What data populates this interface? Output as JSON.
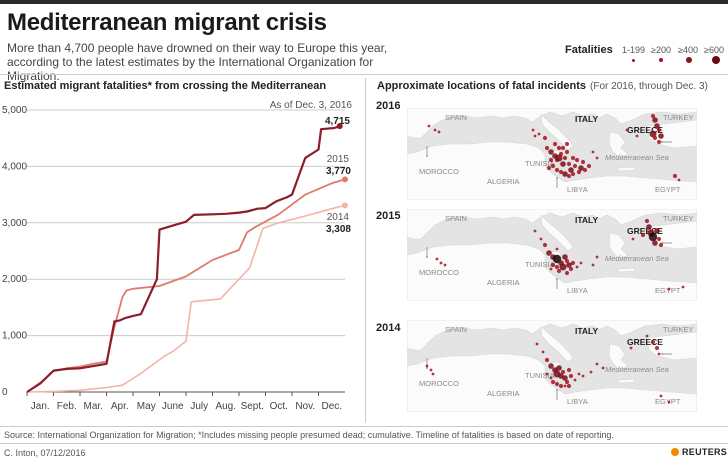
{
  "title": "Mediterranean migrant crisis",
  "subtitle": "More than 4,700 people have drowned on their way to Europe this year, according to the latest estimates by the International Organization for Migration.",
  "legend": {
    "title": "Fatalities",
    "categories": [
      "1-199",
      "≥200",
      "≥400",
      "≥600"
    ]
  },
  "left_header": "Estimated migrant fatalities* from crossing the Mediterranean",
  "right_header": "Approximate locations of fatal incidents",
  "right_note": "(For 2016, through Dec. 3)",
  "maps": [
    {
      "year": "2016",
      "labels": {
        "spain": "SPAIN",
        "italy": "ITALY",
        "greece": "GREECE",
        "turkey": "TURKEY",
        "tunisia": "TUNISIA",
        "morocco": "MOROCCO",
        "algeria": "ALGERIA",
        "libya": "LIBYA",
        "egypt": "EGYPT",
        "sea": "Mediterranean Sea"
      }
    },
    {
      "year": "2015",
      "labels": {
        "spain": "SPAIN",
        "italy": "ITALY",
        "greece": "GREECE",
        "turkey": "TURKEY",
        "tunisia": "TUNISIA",
        "morocco": "MOROCCO",
        "algeria": "ALGERIA",
        "libya": "LIBYA",
        "egypt": "EGYPT",
        "sea": "Mediterranean Sea"
      }
    },
    {
      "year": "2014",
      "labels": {
        "spain": "SPAIN",
        "italy": "ITALY",
        "greece": "GREECE",
        "turkey": "TURKEY",
        "tunisia": "TUNISIA",
        "morocco": "MOROCCO",
        "algeria": "ALGERIA",
        "libya": "LIBYA",
        "egypt": "EGYPT",
        "sea": "Mediterranean Sea"
      }
    }
  ],
  "source": "Source: International Organization for Migration; *Includes missing people presumed dead; cumulative. Timeline of fatalities is based on date of reporting.",
  "credit": "C. Inton, 07/12/2016",
  "brand": "REUTERS",
  "colors": {
    "s2016": "#8c1d2b",
    "s2015": "#e07b6c",
    "s2014": "#f2b4a6",
    "dot": "#a3131f"
  },
  "chart_data": {
    "type": "line",
    "ylim": [
      0,
      5000
    ],
    "yticks": [
      0,
      1000,
      2000,
      3000,
      4000,
      5000
    ],
    "ytick_labels": [
      "0",
      "1,000",
      "2,000",
      "3,000",
      "4,000",
      "5,000"
    ],
    "xlim": [
      0,
      12
    ],
    "xticks": [
      0.5,
      1.5,
      2.5,
      3.5,
      4.5,
      5.5,
      6.5,
      7.5,
      8.5,
      9.5,
      10.5,
      11.5
    ],
    "xtick_labels": [
      "Jan.",
      "Feb.",
      "Mar.",
      "Apr.",
      "May",
      "June",
      "July",
      "Aug.",
      "Sept.",
      "Oct.",
      "Nov.",
      "Dec."
    ],
    "series": [
      {
        "name": "2014",
        "end_label": "3,308",
        "x": [
          0,
          1,
          2,
          3,
          3.6,
          4.3,
          5.2,
          5.5,
          6.0,
          6.2,
          7.3,
          8.4,
          8.9,
          9.5,
          10.5,
          11.5,
          12.0
        ],
        "y": [
          0,
          10,
          30,
          80,
          120,
          330,
          640,
          720,
          900,
          1600,
          1650,
          2200,
          2900,
          3000,
          3120,
          3250,
          3308
        ]
      },
      {
        "name": "2015",
        "end_label": "3,770",
        "x": [
          0,
          0.6,
          1.0,
          1.5,
          2.0,
          2.5,
          3.0,
          3.3,
          3.6,
          3.75,
          4.0,
          5.0,
          6.0,
          7.0,
          8.0,
          8.3,
          8.6,
          9.5,
          10.5,
          11.5,
          12.0
        ],
        "y": [
          0,
          200,
          370,
          420,
          450,
          500,
          540,
          1150,
          1680,
          1800,
          1830,
          1880,
          2050,
          2340,
          2520,
          2830,
          2920,
          3150,
          3500,
          3700,
          3770
        ]
      },
      {
        "name": "2016",
        "end_label": "4,715",
        "annotation": "As of Dec. 3, 2016",
        "x": [
          0,
          0.5,
          1.0,
          1.5,
          2.0,
          2.5,
          3.0,
          3.3,
          3.5,
          3.7,
          4.0,
          4.3,
          4.9,
          5.0,
          5.5,
          6.0,
          6.3,
          7.0,
          7.5,
          8.0,
          8.3,
          8.7,
          9.0,
          9.4,
          9.8,
          10.0,
          10.5,
          11.0,
          11.1,
          11.6,
          11.8
        ],
        "y": [
          0,
          150,
          380,
          410,
          420,
          460,
          500,
          1250,
          1270,
          1310,
          1350,
          1380,
          2000,
          2880,
          2950,
          3020,
          3140,
          3150,
          3160,
          3180,
          3200,
          3250,
          3260,
          3380,
          3450,
          3500,
          4150,
          4300,
          4660,
          4680,
          4715
        ]
      }
    ]
  }
}
